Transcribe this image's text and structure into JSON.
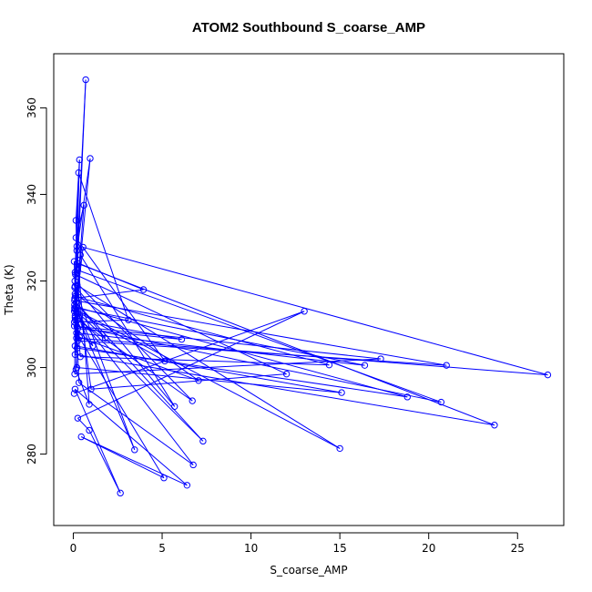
{
  "chart_data": {
    "type": "line",
    "title": "ATOM2 Southbound S_coarse_AMP",
    "xlabel": "S_coarse_AMP",
    "ylabel": "Theta (K)",
    "xlim": [
      -1.1,
      27.6
    ],
    "ylim": [
      263.5,
      372.5
    ],
    "x_ticks": [
      0,
      5,
      10,
      15,
      20,
      25
    ],
    "y_ticks": [
      280,
      300,
      320,
      340,
      360
    ],
    "grid": false,
    "marker": "open-circle",
    "color": "#0000ff",
    "series": [
      {
        "points": [
          [
            0.06,
            313.0
          ],
          [
            0.7,
            366.5
          ],
          [
            0.22,
            321.8
          ],
          [
            0.15,
            334.0
          ],
          [
            0.35,
            348.0
          ],
          [
            0.1,
            312.0
          ],
          [
            0.55,
            327.8
          ],
          [
            26.7,
            298.3
          ],
          [
            0.18,
            306.8
          ],
          [
            0.05,
            324.5
          ],
          [
            3.95,
            318.0
          ],
          [
            0.08,
            316.0
          ],
          [
            0.4,
            302.5
          ],
          [
            14.4,
            300.6
          ],
          [
            0.3,
            316.2
          ],
          [
            1.0,
            295.0
          ],
          [
            12.0,
            298.5
          ],
          [
            0.12,
            321.5
          ],
          [
            0.25,
            322.5
          ],
          [
            20.7,
            292.0
          ],
          [
            0.06,
            309.6
          ],
          [
            1.1,
            305.0
          ],
          [
            0.07,
            314.5
          ],
          [
            0.2,
            328.0
          ],
          [
            0.09,
            320.0
          ],
          [
            6.7,
            292.3
          ],
          [
            0.1,
            311.5
          ],
          [
            0.6,
            337.5
          ],
          [
            0.15,
            330.0
          ],
          [
            5.15,
            301.5
          ],
          [
            0.18,
            313.0
          ],
          [
            1.8,
            306.8
          ],
          [
            0.07,
            315.5
          ],
          [
            21.0,
            300.5
          ],
          [
            0.25,
            306.2
          ],
          [
            0.1,
            322.0
          ],
          [
            0.3,
            345.0
          ],
          [
            3.1,
            311.0
          ],
          [
            0.06,
            310.5
          ],
          [
            0.95,
            348.3
          ],
          [
            0.2,
            327.0
          ],
          [
            0.1,
            317.0
          ],
          [
            7.05,
            297.0
          ],
          [
            0.35,
            307.0
          ],
          [
            0.08,
            313.5
          ],
          [
            15.0,
            281.3
          ],
          [
            0.22,
            319.0
          ],
          [
            0.12,
            316.5
          ],
          [
            0.08,
            298.5
          ],
          [
            17.3,
            302.0
          ],
          [
            0.2,
            309.5
          ],
          [
            0.1,
            318.8
          ],
          [
            5.7,
            291.0
          ],
          [
            0.4,
            326.0
          ],
          [
            0.15,
            299.5
          ],
          [
            0.9,
            291.5
          ],
          [
            0.28,
            324.0
          ],
          [
            23.7,
            286.7
          ],
          [
            0.1,
            303.0
          ],
          [
            0.18,
            312.5
          ],
          [
            6.75,
            277.5
          ],
          [
            0.32,
            296.5
          ],
          [
            0.14,
            314.0
          ],
          [
            18.8,
            293.2
          ],
          [
            0.22,
            304.5
          ],
          [
            0.08,
            318.5
          ],
          [
            3.45,
            281.0
          ],
          [
            0.45,
            310.0
          ],
          [
            0.16,
            315.0
          ],
          [
            7.3,
            283.0
          ],
          [
            0.3,
            311.5
          ],
          [
            0.1,
            305.0
          ],
          [
            15.1,
            294.2
          ],
          [
            0.2,
            300.0
          ],
          [
            0.12,
            311.0
          ],
          [
            6.1,
            306.5
          ],
          [
            0.25,
            309.0
          ],
          [
            0.07,
            313.8
          ],
          [
            16.4,
            300.5
          ],
          [
            0.18,
            308.0
          ],
          [
            5.1,
            274.5
          ],
          [
            0.45,
            284.0
          ],
          [
            6.4,
            272.8
          ],
          [
            0.1,
            295.0
          ],
          [
            2.65,
            271.0
          ],
          [
            0.9,
            285.5
          ],
          [
            0.25,
            288.3
          ],
          [
            13.0,
            313.0
          ],
          [
            0.05,
            294.0
          ]
        ]
      }
    ]
  }
}
